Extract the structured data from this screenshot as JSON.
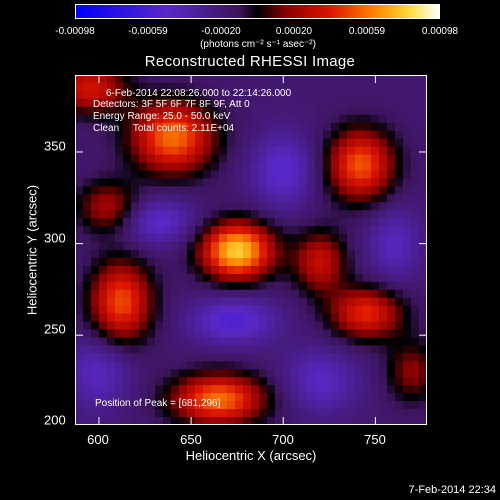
{
  "chart_data": {
    "type": "heatmap",
    "title": "Reconstructed RHESSI Image",
    "xlabel": "Heliocentric X (arcsec)",
    "ylabel": "Heliocentric Y (arcsec)",
    "xlim": [
      587,
      778
    ],
    "ylim": [
      201,
      392
    ],
    "x_ticks": [
      "600",
      "650",
      "700",
      "750"
    ],
    "y_ticks": [
      "200",
      "250",
      "300",
      "350"
    ],
    "colorbar": {
      "ticks": [
        "-0.00098",
        "-0.00059",
        "-0.00020",
        "0.00020",
        "0.00059",
        "0.00098"
      ],
      "range": [
        -0.00098,
        0.00098
      ],
      "unit_label": "(photons cm⁻² s⁻¹ asec⁻²)"
    },
    "info_lines": [
      "6-Feb-2014 22:08:26.000 to 22:14:26.000",
      "Detectors: 3F 5F 6F 7F 8F 9F, Att 0",
      "Energy Range: 25.0 - 50.0 keV",
      "Clean     Total counts: 2.11E+04"
    ],
    "peak_label": "Position of Peak = [681,296]",
    "peak": [
      681,
      296
    ],
    "sources": [
      {
        "x": 675,
        "y": 296,
        "amp": 1.0,
        "sx": 14,
        "sy": 11
      },
      {
        "x": 640,
        "y": 358,
        "amp": 0.78,
        "sx": 16,
        "sy": 14
      },
      {
        "x": 742,
        "y": 343,
        "amp": 0.72,
        "sx": 13,
        "sy": 14
      },
      {
        "x": 612,
        "y": 268,
        "amp": 0.7,
        "sx": 12,
        "sy": 16
      },
      {
        "x": 665,
        "y": 215,
        "amp": 0.78,
        "sx": 18,
        "sy": 10
      },
      {
        "x": 745,
        "y": 262,
        "amp": 0.62,
        "sx": 14,
        "sy": 10
      },
      {
        "x": 595,
        "y": 385,
        "amp": 0.55,
        "sx": 14,
        "sy": 10
      },
      {
        "x": 720,
        "y": 290,
        "amp": 0.5,
        "sx": 10,
        "sy": 12
      },
      {
        "x": 605,
        "y": 320,
        "amp": 0.42,
        "sx": 12,
        "sy": 10
      },
      {
        "x": 770,
        "y": 230,
        "amp": 0.35,
        "sx": 10,
        "sy": 12
      },
      {
        "x": 700,
        "y": 340,
        "amp": -0.35,
        "sx": 12,
        "sy": 14
      },
      {
        "x": 673,
        "y": 258,
        "amp": -0.4,
        "sx": 16,
        "sy": 9
      },
      {
        "x": 632,
        "y": 312,
        "amp": -0.35,
        "sx": 14,
        "sy": 9
      },
      {
        "x": 600,
        "y": 230,
        "amp": -0.3,
        "sx": 12,
        "sy": 14
      },
      {
        "x": 720,
        "y": 225,
        "amp": -0.3,
        "sx": 14,
        "sy": 12
      },
      {
        "x": 760,
        "y": 300,
        "amp": -0.28,
        "sx": 10,
        "sy": 14
      }
    ]
  },
  "footer": {
    "timestamp": "7-Feb-2014 22:34"
  }
}
